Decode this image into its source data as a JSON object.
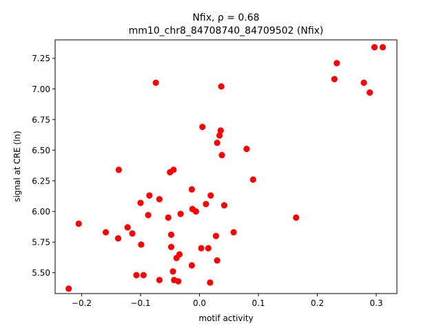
{
  "chart_data": {
    "type": "scatter",
    "title_line1": "Nfix, ρ = 0.68",
    "title_line2": "mm10_chr8_84708740_84709502 (Nfix)",
    "xlabel": "motif activity",
    "ylabel": "signal at CRE (ln)",
    "xlim": [
      -0.245,
      0.335
    ],
    "ylim": [
      5.33,
      7.4
    ],
    "xticks": [
      -0.2,
      -0.1,
      0.0,
      0.1,
      0.2,
      0.3
    ],
    "xtick_labels": [
      "−0.2",
      "−0.1",
      "0.0",
      "0.1",
      "0.2",
      "0.3"
    ],
    "yticks": [
      5.5,
      5.75,
      6.0,
      6.25,
      6.5,
      6.75,
      7.0,
      7.25
    ],
    "ytick_labels": [
      "5.50",
      "5.75",
      "6.00",
      "6.25",
      "6.50",
      "6.75",
      "7.00",
      "7.25"
    ],
    "marker_color": "#ff0000",
    "grid": false,
    "points": [
      {
        "x": -0.222,
        "y": 5.37
      },
      {
        "x": -0.205,
        "y": 5.9
      },
      {
        "x": -0.159,
        "y": 5.83
      },
      {
        "x": -0.137,
        "y": 6.34
      },
      {
        "x": -0.138,
        "y": 5.78
      },
      {
        "x": -0.122,
        "y": 5.87
      },
      {
        "x": -0.114,
        "y": 5.82
      },
      {
        "x": -0.107,
        "y": 5.48
      },
      {
        "x": -0.1,
        "y": 6.07
      },
      {
        "x": -0.099,
        "y": 5.73
      },
      {
        "x": -0.095,
        "y": 5.48
      },
      {
        "x": -0.087,
        "y": 5.97
      },
      {
        "x": -0.085,
        "y": 6.13
      },
      {
        "x": -0.074,
        "y": 7.05
      },
      {
        "x": -0.068,
        "y": 6.1
      },
      {
        "x": -0.068,
        "y": 5.44
      },
      {
        "x": -0.053,
        "y": 5.95
      },
      {
        "x": -0.05,
        "y": 6.32
      },
      {
        "x": -0.048,
        "y": 5.81
      },
      {
        "x": -0.048,
        "y": 5.71
      },
      {
        "x": -0.044,
        "y": 6.34
      },
      {
        "x": -0.045,
        "y": 5.51
      },
      {
        "x": -0.043,
        "y": 5.44
      },
      {
        "x": -0.039,
        "y": 5.62
      },
      {
        "x": -0.036,
        "y": 5.43
      },
      {
        "x": -0.034,
        "y": 5.65
      },
      {
        "x": -0.032,
        "y": 5.98
      },
      {
        "x": -0.013,
        "y": 6.18
      },
      {
        "x": -0.013,
        "y": 5.56
      },
      {
        "x": -0.012,
        "y": 6.02
      },
      {
        "x": -0.006,
        "y": 6.0
      },
      {
        "x": 0.003,
        "y": 5.7
      },
      {
        "x": 0.005,
        "y": 6.69
      },
      {
        "x": 0.011,
        "y": 6.06
      },
      {
        "x": 0.015,
        "y": 5.7
      },
      {
        "x": 0.018,
        "y": 5.42
      },
      {
        "x": 0.019,
        "y": 6.13
      },
      {
        "x": 0.028,
        "y": 5.8
      },
      {
        "x": 0.03,
        "y": 6.56
      },
      {
        "x": 0.03,
        "y": 5.6
      },
      {
        "x": 0.034,
        "y": 6.62
      },
      {
        "x": 0.036,
        "y": 6.66
      },
      {
        "x": 0.037,
        "y": 7.02
      },
      {
        "x": 0.038,
        "y": 6.46
      },
      {
        "x": 0.042,
        "y": 6.05
      },
      {
        "x": 0.058,
        "y": 5.83
      },
      {
        "x": 0.08,
        "y": 6.51
      },
      {
        "x": 0.091,
        "y": 6.26
      },
      {
        "x": 0.164,
        "y": 5.95
      },
      {
        "x": 0.229,
        "y": 7.08
      },
      {
        "x": 0.233,
        "y": 7.21
      },
      {
        "x": 0.279,
        "y": 7.05
      },
      {
        "x": 0.289,
        "y": 6.97
      },
      {
        "x": 0.297,
        "y": 7.34
      },
      {
        "x": 0.311,
        "y": 7.34
      }
    ]
  }
}
